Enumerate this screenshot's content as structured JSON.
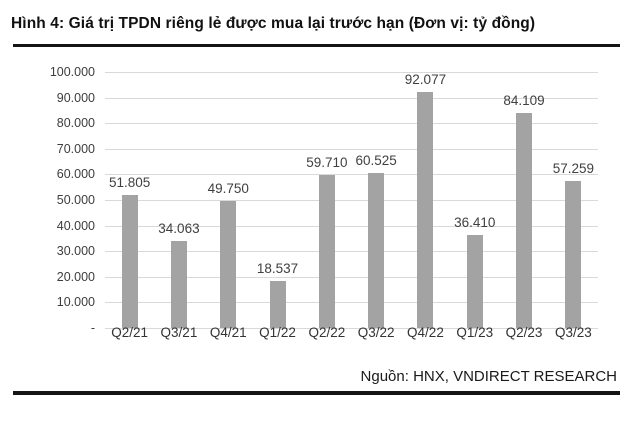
{
  "header": {
    "title": "Hình 4: Giá trị TPDN riêng lẻ được mua lại trước hạn (Đơn vị: tỷ đồng)"
  },
  "footer": {
    "source": "Nguồn: HNX, VNDIRECT RESEARCH"
  },
  "colors": {
    "bar": "#a3a3a3",
    "gridline": "#d9d9d9",
    "tick_text": "#3d3d3d",
    "value_label_text": "#404040",
    "divider": "#151515"
  },
  "chart_data": {
    "type": "bar",
    "title": "Hình 4: Giá trị TPDN riêng lẻ được mua lại trước hạn (Đơn vị: tỷ đồng)",
    "xlabel": "",
    "ylabel": "",
    "unit": "tỷ đồng",
    "categories": [
      "Q2/21",
      "Q3/21",
      "Q4/21",
      "Q1/22",
      "Q2/22",
      "Q3/22",
      "Q4/22",
      "Q1/23",
      "Q2/23",
      "Q3/23"
    ],
    "values": [
      51805,
      34063,
      49750,
      18537,
      59710,
      60525,
      92077,
      36410,
      84109,
      57259
    ],
    "value_labels": [
      "51.805",
      "34.063",
      "49.750",
      "18.537",
      "59.710",
      "60.525",
      "92.077",
      "36.410",
      "84.109",
      "57.259"
    ],
    "y_tick_labels": [
      "100.000",
      "90.000",
      "80.000",
      "70.000",
      "60.000",
      "50.000",
      "40.000",
      "30.000",
      "20.000",
      "10.000",
      "-"
    ],
    "ylim": [
      0,
      100000
    ],
    "grid": true,
    "legend_position": "none",
    "source": "Nguồn: HNX, VNDIRECT RESEARCH"
  }
}
